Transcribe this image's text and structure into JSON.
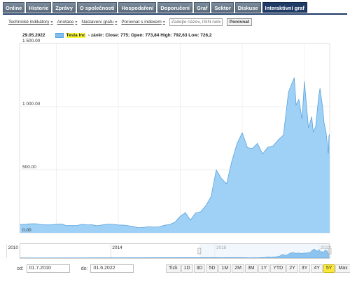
{
  "tabs": [
    {
      "label": "Online"
    },
    {
      "label": "Historie"
    },
    {
      "label": "Zprávy"
    },
    {
      "label": "O společnosti"
    },
    {
      "label": "Hospodaření"
    },
    {
      "label": "Doporučení"
    },
    {
      "label": "Graf"
    },
    {
      "label": "Sektor"
    },
    {
      "label": "Diskuse"
    },
    {
      "label": "Interaktivní graf",
      "active": true
    }
  ],
  "toolbar": {
    "technical": "Technické indikátory",
    "annotation": "Anotace",
    "settings": "Nastavení grafu",
    "compare_index": "Porovnat s indexem",
    "search_placeholder": "Zadejte název, ISIN nebo",
    "compare_button": "Porovnat"
  },
  "tooltip": {
    "date": "29.05.2022",
    "series": "Tesla Inc",
    "text": " - závěr: Close: 775; Open: 773,84 High: 792,63 Low: 726,2"
  },
  "colors": {
    "area": "#9fd0f5",
    "line": "#5aa3dd",
    "highlight": "#ffff3a",
    "tab_active": "#1f3b66"
  },
  "chart_data": {
    "type": "area",
    "series_name": "Tesla Inc",
    "ylim": [
      0,
      1500
    ],
    "y_ticks": [
      {
        "label": "1 500.00",
        "value": 1500
      },
      {
        "label": "1 000.00",
        "value": 1000
      },
      {
        "label": "500.00",
        "value": 500
      },
      {
        "label": "0.00",
        "value": 0
      }
    ],
    "x_range": [
      "2017-05-29",
      "2022-06-01"
    ],
    "points": [
      {
        "date": "2017-06-01",
        "close": 66
      },
      {
        "date": "2017-07-01",
        "close": 68
      },
      {
        "date": "2017-08-01",
        "close": 71
      },
      {
        "date": "2017-09-01",
        "close": 72
      },
      {
        "date": "2017-10-01",
        "close": 66
      },
      {
        "date": "2017-11-01",
        "close": 63
      },
      {
        "date": "2017-12-01",
        "close": 63
      },
      {
        "date": "2018-01-01",
        "close": 68
      },
      {
        "date": "2018-02-01",
        "close": 70
      },
      {
        "date": "2018-03-01",
        "close": 57
      },
      {
        "date": "2018-04-01",
        "close": 57
      },
      {
        "date": "2018-05-01",
        "close": 58
      },
      {
        "date": "2018-06-01",
        "close": 67
      },
      {
        "date": "2018-07-01",
        "close": 64
      },
      {
        "date": "2018-08-01",
        "close": 63
      },
      {
        "date": "2018-09-01",
        "close": 56
      },
      {
        "date": "2018-10-01",
        "close": 63
      },
      {
        "date": "2018-11-01",
        "close": 69
      },
      {
        "date": "2018-12-01",
        "close": 67
      },
      {
        "date": "2019-01-01",
        "close": 62
      },
      {
        "date": "2019-02-01",
        "close": 61
      },
      {
        "date": "2019-03-01",
        "close": 56
      },
      {
        "date": "2019-04-01",
        "close": 49
      },
      {
        "date": "2019-05-01",
        "close": 40
      },
      {
        "date": "2019-06-01",
        "close": 44
      },
      {
        "date": "2019-07-01",
        "close": 48
      },
      {
        "date": "2019-08-01",
        "close": 45
      },
      {
        "date": "2019-09-01",
        "close": 48
      },
      {
        "date": "2019-10-01",
        "close": 60
      },
      {
        "date": "2019-11-01",
        "close": 66
      },
      {
        "date": "2019-12-01",
        "close": 84
      },
      {
        "date": "2020-01-01",
        "close": 130
      },
      {
        "date": "2020-02-01",
        "close": 160
      },
      {
        "date": "2020-03-01",
        "close": 100
      },
      {
        "date": "2020-04-01",
        "close": 156
      },
      {
        "date": "2020-05-01",
        "close": 167
      },
      {
        "date": "2020-06-01",
        "close": 216
      },
      {
        "date": "2020-07-01",
        "close": 286
      },
      {
        "date": "2020-08-01",
        "close": 498
      },
      {
        "date": "2020-09-01",
        "close": 429
      },
      {
        "date": "2020-10-01",
        "close": 388
      },
      {
        "date": "2020-11-01",
        "close": 567
      },
      {
        "date": "2020-12-01",
        "close": 705
      },
      {
        "date": "2021-01-01",
        "close": 793
      },
      {
        "date": "2021-02-01",
        "close": 675
      },
      {
        "date": "2021-03-01",
        "close": 667
      },
      {
        "date": "2021-04-01",
        "close": 709
      },
      {
        "date": "2021-05-01",
        "close": 625
      },
      {
        "date": "2021-06-01",
        "close": 679
      },
      {
        "date": "2021-07-01",
        "close": 687
      },
      {
        "date": "2021-08-01",
        "close": 735
      },
      {
        "date": "2021-09-01",
        "close": 775
      },
      {
        "date": "2021-10-01",
        "close": 1114
      },
      {
        "date": "2021-11-04",
        "close": 1230
      },
      {
        "date": "2021-11-15",
        "close": 1013
      },
      {
        "date": "2021-12-01",
        "close": 1057
      },
      {
        "date": "2021-12-20",
        "close": 900
      },
      {
        "date": "2022-01-03",
        "close": 1199
      },
      {
        "date": "2022-01-27",
        "close": 830
      },
      {
        "date": "2022-02-15",
        "close": 920
      },
      {
        "date": "2022-02-24",
        "close": 800
      },
      {
        "date": "2022-03-10",
        "close": 840
      },
      {
        "date": "2022-03-29",
        "close": 1093
      },
      {
        "date": "2022-04-05",
        "close": 1145
      },
      {
        "date": "2022-04-20",
        "close": 1000
      },
      {
        "date": "2022-04-29",
        "close": 870
      },
      {
        "date": "2022-05-10",
        "close": 800
      },
      {
        "date": "2022-05-24",
        "close": 628
      },
      {
        "date": "2022-05-27",
        "close": 760
      },
      {
        "date": "2022-05-29",
        "close": 775
      },
      {
        "date": "2022-06-01",
        "close": 781
      }
    ],
    "navigator": {
      "x_range": [
        "2010-07-01",
        "2022-06-01"
      ],
      "year_labels": [
        "2010",
        "2014",
        "2018",
        "2022"
      ],
      "selection": [
        "2017-05-29",
        "2022-06-01"
      ]
    }
  },
  "date_range": {
    "from_label": "od:",
    "from": "01.7.2010",
    "to_label": "do:",
    "to": "01.6.2022"
  },
  "range_buttons": [
    {
      "label": "Tick"
    },
    {
      "label": "1D"
    },
    {
      "label": "3D"
    },
    {
      "label": "5D"
    },
    {
      "label": "1M"
    },
    {
      "label": "2M"
    },
    {
      "label": "3M"
    },
    {
      "label": "1Y"
    },
    {
      "label": "YTD"
    },
    {
      "label": "2Y"
    },
    {
      "label": "3Y"
    },
    {
      "label": "4Y"
    },
    {
      "label": "5Y",
      "selected": true
    },
    {
      "label": "Max"
    }
  ]
}
